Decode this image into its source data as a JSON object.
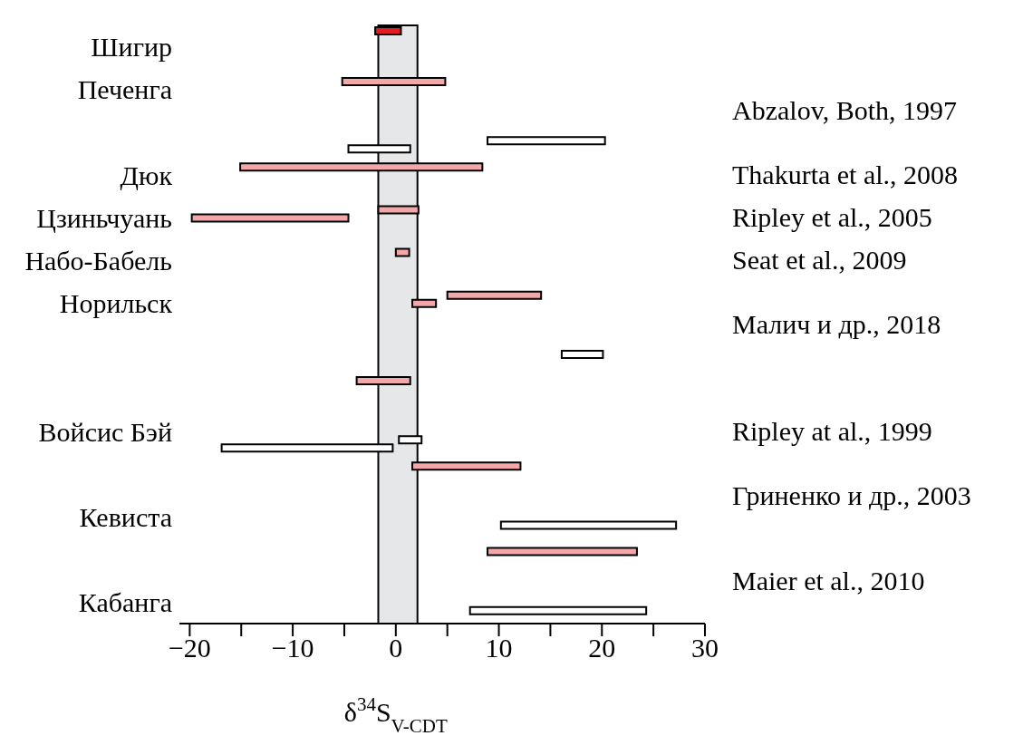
{
  "chart_data": {
    "type": "bar",
    "orientation": "horizontal",
    "xlabel": "δ$^{34}$S$_{V-CDT}$",
    "categories": [
      "Шигир",
      "Печенга",
      null,
      "Дюк",
      "Цзиньчуань",
      "Набо-Бабель",
      "Норильск",
      null,
      null,
      "Войсис Бэй",
      null,
      "Кевиста",
      null,
      "Кабанга"
    ],
    "series": [
      {
        "color": "#e31b23",
        "base": [
          -2,
          null,
          null,
          null,
          null,
          null,
          null,
          null,
          null,
          null,
          null,
          null,
          null,
          null
        ],
        "values": [
          2.5,
          null,
          null,
          null,
          null,
          null,
          null,
          null,
          null,
          null,
          null,
          null,
          null,
          null
        ]
      },
      {
        "color": "#f4a7a9",
        "base": [
          null,
          -5.2,
          null,
          -15.1,
          -1.7,
          0,
          5,
          null,
          -3.8,
          null,
          1.6,
          null,
          8.9,
          null
        ],
        "values": [
          null,
          10,
          null,
          23.5,
          3.9,
          1.3,
          9.1,
          null,
          5.2,
          null,
          10.5,
          null,
          14.5,
          null
        ]
      },
      {
        "color": "#f4a7a9",
        "base": [
          null,
          null,
          null,
          null,
          -19.8,
          null,
          1.6,
          null,
          null,
          null,
          null,
          null,
          null,
          null
        ],
        "values": [
          null,
          null,
          null,
          null,
          15.2,
          null,
          2.3,
          null,
          null,
          null,
          null,
          null,
          null,
          null
        ]
      },
      {
        "color": "#ffffff",
        "base": [
          null,
          null,
          8.9,
          null,
          null,
          null,
          null,
          16.1,
          null,
          0.3,
          null,
          10.2,
          null,
          7.2
        ],
        "values": [
          null,
          null,
          11.4,
          null,
          null,
          null,
          null,
          4,
          null,
          2.2,
          null,
          17,
          null,
          17.1
        ]
      },
      {
        "color": "#ffffff",
        "base": [
          null,
          null,
          -4.6,
          null,
          null,
          null,
          null,
          null,
          null,
          -16.9,
          null,
          null,
          null,
          null
        ],
        "values": [
          null,
          null,
          6,
          null,
          null,
          null,
          null,
          null,
          null,
          16.6,
          null,
          null,
          null,
          null
        ]
      }
    ],
    "xlim": [
      -21,
      30
    ],
    "xticks": [
      {
        "value": -20,
        "label": "−20"
      },
      {
        "value": -15,
        "label": null
      },
      {
        "value": -10,
        "label": "−10"
      },
      {
        "value": -5,
        "label": null
      },
      0,
      {
        "value": 5,
        "label": null
      },
      10,
      {
        "value": 15,
        "label": null
      },
      20,
      {
        "value": 25,
        "label": null
      },
      30
    ],
    "bands": [
      {
        "axis": "x",
        "from": -1.7,
        "to": 2.1,
        "color": "#e6e7e9"
      }
    ],
    "annotations": [
      "Abzalov, Both, 1997",
      "Thakurta et al., 2008",
      "Ripley et al., 2005",
      "Seat et al., 2009",
      "Малич и др., 2018",
      "Ripley at al., 1999",
      "Гриненко и др., 2003",
      "Maier et al., 2010"
    ],
    "grid": false,
    "legend": false
  }
}
